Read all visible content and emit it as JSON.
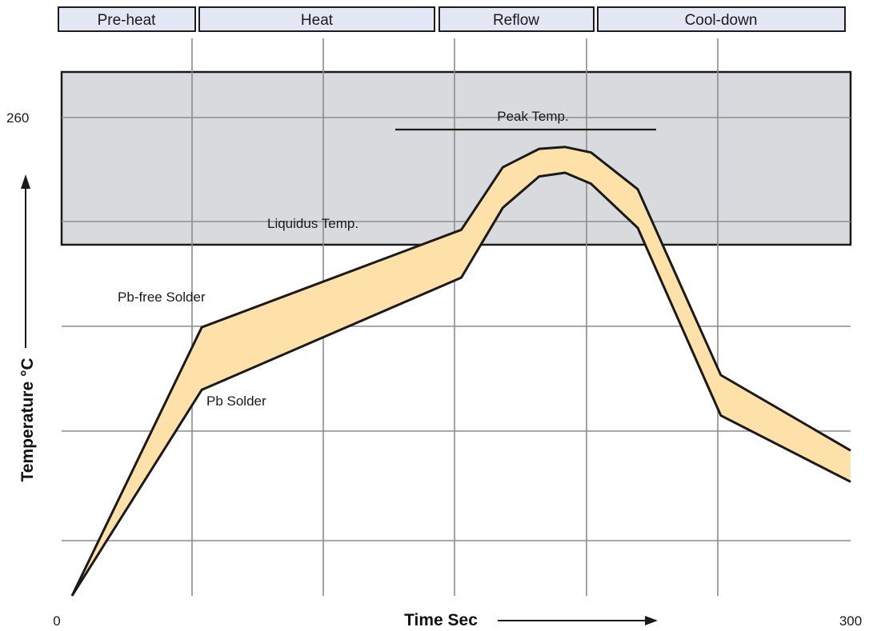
{
  "chart_data": {
    "type": "area",
    "phases": [
      "Pre-heat",
      "Heat",
      "Reflow",
      "Cool-down"
    ],
    "xlabel": "Time Sec",
    "ylabel": "Temperature °C",
    "x_ticks": [
      {
        "value": 0,
        "label": "0"
      },
      {
        "value": 300,
        "label": "300"
      }
    ],
    "y_ticks": [
      {
        "value": 260,
        "label": "260"
      }
    ],
    "xlim": [
      0,
      300
    ],
    "ylim": [
      0,
      260
    ],
    "grid": true,
    "annotations": {
      "peak": "Peak Temp.",
      "liquidus": "Liquidus Temp.",
      "pb_free": "Pb-free Solder",
      "pb": "Pb Solder"
    },
    "series": [
      {
        "name": "Pb-free Solder",
        "x": [
          0,
          50,
          150,
          166,
          180,
          190,
          200,
          218,
          250,
          300
        ],
        "y": [
          0,
          146,
          199,
          233,
          243,
          244,
          241,
          221,
          120,
          79
        ]
      },
      {
        "name": "Pb Solder",
        "x": [
          0,
          50,
          150,
          166,
          180,
          190,
          200,
          218,
          250,
          300
        ],
        "y": [
          0,
          112,
          173,
          211,
          228,
          230,
          224,
          200,
          98,
          62
        ]
      }
    ],
    "colors": {
      "band": "#fde1a8",
      "zone": "#d9dadd",
      "line": "#1a1a1a"
    }
  }
}
